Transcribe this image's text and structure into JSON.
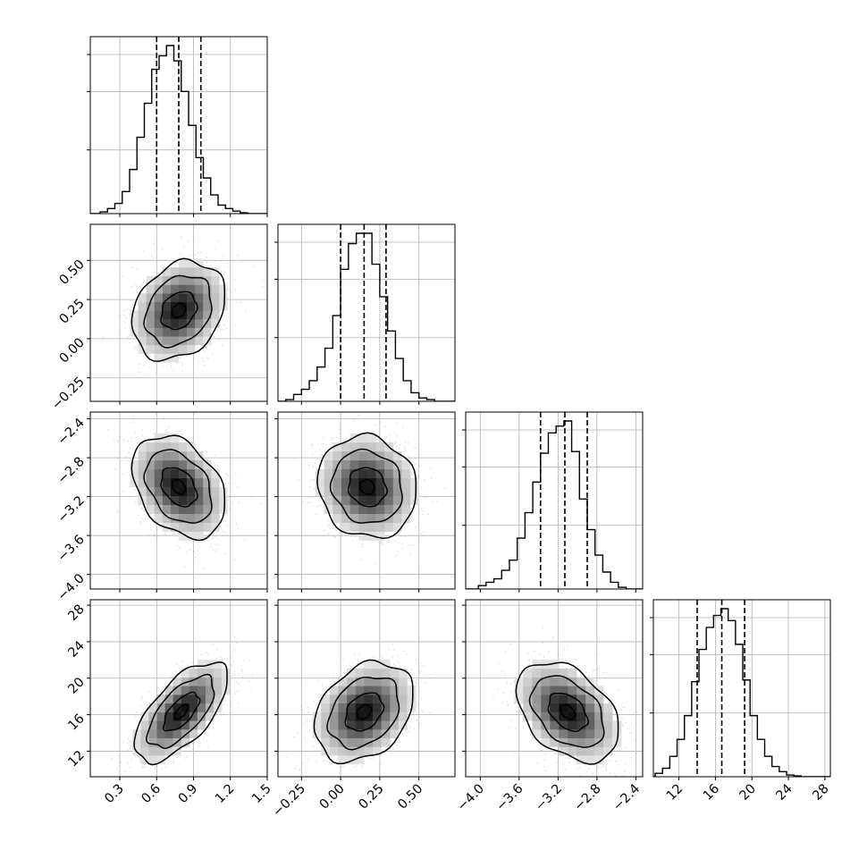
{
  "chart_data": {
    "type": "corner",
    "n_parameters": 4,
    "grid": true,
    "quantile_levels": [
      0.16,
      0.5,
      0.84
    ],
    "parameters": [
      {
        "range": [
          0.06,
          1.5
        ],
        "ticks": [
          0.3,
          0.6,
          0.9,
          1.2,
          1.5
        ],
        "tick_labels": [
          "0.3",
          "0.6",
          "0.9",
          "1.2",
          "1.5"
        ],
        "quantiles": [
          0.6,
          0.78,
          0.96
        ],
        "hist": {
          "edges": [
            0.08,
            0.14,
            0.2,
            0.26,
            0.32,
            0.38,
            0.44,
            0.5,
            0.56,
            0.62,
            0.68,
            0.74,
            0.8,
            0.86,
            0.92,
            0.98,
            1.04,
            1.1,
            1.16,
            1.22,
            1.28,
            1.34,
            1.4
          ],
          "counts": [
            0.0,
            0.01,
            0.03,
            0.06,
            0.13,
            0.26,
            0.45,
            0.65,
            0.85,
            0.93,
            0.99,
            0.9,
            0.72,
            0.52,
            0.33,
            0.21,
            0.11,
            0.05,
            0.03,
            0.015,
            0.005,
            0.0
          ]
        }
      },
      {
        "range": [
          -0.4,
          0.73
        ],
        "ticks": [
          -0.25,
          0.0,
          0.25,
          0.5
        ],
        "tick_labels": [
          "−0.25",
          "0.00",
          "0.25",
          "0.50"
        ],
        "quantiles": [
          0.0,
          0.15,
          0.29
        ],
        "hist": {
          "edges": [
            -0.4,
            -0.35,
            -0.3,
            -0.25,
            -0.2,
            -0.15,
            -0.1,
            -0.05,
            0.0,
            0.05,
            0.1,
            0.15,
            0.2,
            0.25,
            0.3,
            0.35,
            0.4,
            0.45,
            0.5,
            0.55,
            0.6,
            0.65
          ],
          "counts": [
            0.0,
            0.01,
            0.04,
            0.07,
            0.12,
            0.2,
            0.31,
            0.5,
            0.77,
            0.92,
            0.98,
            0.98,
            0.8,
            0.61,
            0.41,
            0.25,
            0.12,
            0.05,
            0.02,
            0.01,
            0.0
          ]
        }
      },
      {
        "range": [
          -4.15,
          -2.33
        ],
        "ticks": [
          -4.0,
          -3.6,
          -3.2,
          -2.8,
          -2.4
        ],
        "tick_labels": [
          "−4.0",
          "−3.6",
          "−3.2",
          "−2.8",
          "−2.4"
        ],
        "quantiles": [
          -3.38,
          -3.13,
          -2.9
        ],
        "hist": {
          "edges": [
            -4.1,
            -4.02,
            -3.94,
            -3.86,
            -3.78,
            -3.7,
            -3.62,
            -3.54,
            -3.46,
            -3.38,
            -3.3,
            -3.22,
            -3.14,
            -3.06,
            -2.98,
            -2.9,
            -2.82,
            -2.74,
            -2.66,
            -2.58,
            -2.5,
            -2.42
          ],
          "counts": [
            0.0,
            0.02,
            0.04,
            0.06,
            0.11,
            0.17,
            0.3,
            0.45,
            0.63,
            0.8,
            0.92,
            0.96,
            0.99,
            0.81,
            0.53,
            0.35,
            0.2,
            0.1,
            0.04,
            0.01,
            0.0
          ]
        }
      },
      {
        "range": [
          9.2,
          28.6
        ],
        "ticks": [
          12,
          16,
          20,
          24,
          28
        ],
        "tick_labels": [
          "12",
          "16",
          "20",
          "24",
          "28"
        ],
        "quantiles": [
          14.0,
          16.7,
          19.2
        ],
        "hist": {
          "edges": [
            9.4,
            10.2,
            11.0,
            11.8,
            12.6,
            13.4,
            14.2,
            15.0,
            15.8,
            16.6,
            17.4,
            18.2,
            19.0,
            19.8,
            20.6,
            21.4,
            22.2,
            23.0,
            23.8,
            24.6,
            25.4,
            26.2
          ],
          "counts": [
            0.02,
            0.05,
            0.12,
            0.22,
            0.36,
            0.56,
            0.75,
            0.88,
            0.95,
            0.99,
            0.92,
            0.78,
            0.57,
            0.36,
            0.22,
            0.12,
            0.06,
            0.03,
            0.01,
            0.005,
            0.0
          ]
        }
      }
    ],
    "pairs": [
      {
        "x": 0,
        "y": 1,
        "center": [
          0.78,
          0.18
        ],
        "sigma": [
          0.18,
          0.15
        ],
        "rho": 0.25
      },
      {
        "x": 0,
        "y": 2,
        "center": [
          0.78,
          -3.1
        ],
        "sigma": [
          0.18,
          0.25
        ],
        "rho": -0.35
      },
      {
        "x": 1,
        "y": 2,
        "center": [
          0.17,
          -3.1
        ],
        "sigma": [
          0.15,
          0.25
        ],
        "rho": -0.1
      },
      {
        "x": 0,
        "y": 3,
        "center": [
          0.8,
          16.3
        ],
        "sigma": [
          0.18,
          2.6
        ],
        "rho": 0.65
      },
      {
        "x": 1,
        "y": 3,
        "center": [
          0.15,
          16.3
        ],
        "sigma": [
          0.15,
          2.6
        ],
        "rho": 0.3
      },
      {
        "x": 2,
        "y": 3,
        "center": [
          -3.1,
          16.3
        ],
        "sigma": [
          0.25,
          2.6
        ],
        "rho": -0.4
      }
    ],
    "contour_levels_sigma": [
      0.3,
      0.8,
      1.5,
      2.1
    ],
    "colors": {
      "line": "#000000",
      "grid": "#b0b0b0",
      "scatter": "#9a9a9a"
    }
  }
}
